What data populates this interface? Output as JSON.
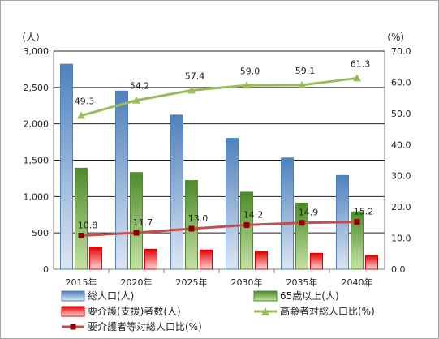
{
  "chart_data": {
    "type": "bar",
    "categories": [
      "2015年",
      "2020年",
      "2025年",
      "2030年",
      "2035年",
      "2040年"
    ],
    "left_axis": {
      "unit": "（人）",
      "ylim": [
        0,
        3000
      ],
      "ticks": [
        "0",
        "500",
        "1,000",
        "1,500",
        "2,000",
        "2,500",
        "3,000"
      ],
      "tick_values": [
        0,
        500,
        1000,
        1500,
        2000,
        2500,
        3000
      ]
    },
    "right_axis": {
      "unit": "（%）",
      "ylim": [
        0,
        70
      ],
      "ticks": [
        "0.0",
        "10.0",
        "20.0",
        "30.0",
        "40.0",
        "50.0",
        "60.0",
        "70.0"
      ],
      "tick_values": [
        0,
        10,
        20,
        30,
        40,
        50,
        60,
        70
      ]
    },
    "grid": true,
    "legend_position": "bottom",
    "series": [
      {
        "name": "総人口(人)",
        "kind": "bar",
        "axis": "left",
        "values": [
          2820,
          2450,
          2120,
          1800,
          1530,
          1290
        ],
        "color": "#4f81bd",
        "light": "#dce6f2"
      },
      {
        "name": "65歳以上(人)",
        "kind": "bar",
        "axis": "left",
        "values": [
          1390,
          1330,
          1220,
          1060,
          910,
          790
        ],
        "color": "#4e8b2a",
        "light": "#c5e0a5"
      },
      {
        "name": "要介護(支援)者数(人)",
        "kind": "bar",
        "axis": "left",
        "values": [
          305,
          275,
          265,
          245,
          220,
          190
        ],
        "color": "#e00000",
        "light": "#ffd7d7"
      },
      {
        "name": "高齢者対総人口比(%)",
        "kind": "line",
        "axis": "right",
        "values": [
          49.3,
          54.2,
          57.4,
          59.0,
          59.1,
          61.3
        ],
        "labels": [
          "49.3",
          "54.2",
          "57.4",
          "59.0",
          "59.1",
          "61.3"
        ],
        "color": "#9bbb59",
        "marker": "triangle"
      },
      {
        "name": "要介護者等対総人口比(%)",
        "kind": "line",
        "axis": "right",
        "values": [
          10.8,
          11.7,
          13.0,
          14.2,
          14.9,
          15.2
        ],
        "labels": [
          "10.8",
          "11.7",
          "13.0",
          "14.2",
          "14.9",
          "15.2"
        ],
        "color": "#c0504d",
        "marker_color": "#8b0000",
        "marker": "square"
      }
    ]
  }
}
